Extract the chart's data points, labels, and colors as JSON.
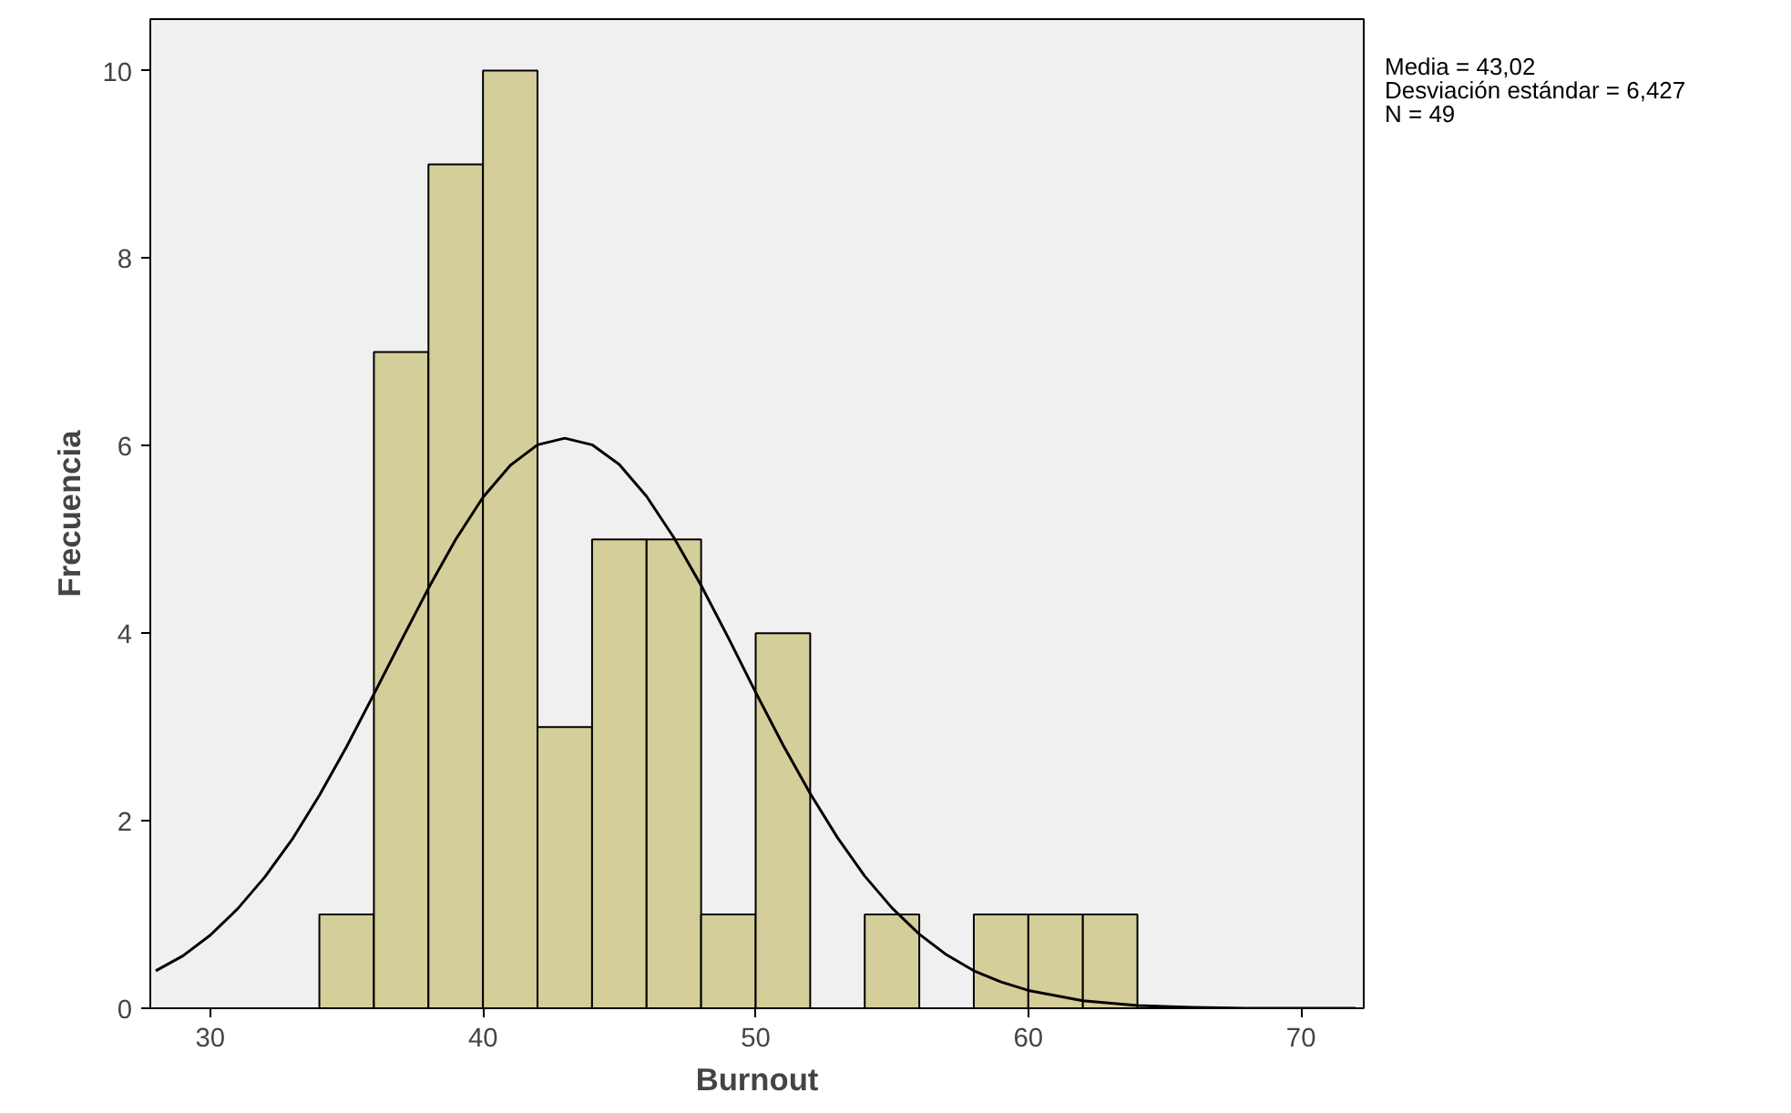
{
  "chart_data": {
    "type": "histogram",
    "xlabel": "Burnout",
    "ylabel": "Frecuencia",
    "bins": [
      34,
      36,
      38,
      40,
      42,
      44,
      46,
      48,
      50,
      52,
      54,
      56,
      58,
      60,
      62,
      64
    ],
    "values": [
      1,
      7,
      9,
      10,
      3,
      5,
      5,
      1,
      4,
      0,
      1,
      0,
      1,
      1,
      1
    ],
    "color": "#d4cf9a",
    "series": [
      {
        "type": "line",
        "color": "#000000",
        "x": [
          28,
          29,
          30,
          31,
          32,
          33,
          34,
          35,
          36,
          37,
          38,
          39,
          40,
          41,
          42,
          43,
          44,
          45,
          46,
          47,
          48,
          49,
          50,
          51,
          52,
          53,
          54,
          55,
          56,
          57,
          58,
          59,
          60,
          62,
          64,
          66,
          68,
          70,
          72
        ],
        "values": [
          0.4,
          0.56,
          0.78,
          1.06,
          1.4,
          1.8,
          2.27,
          2.79,
          3.35,
          3.92,
          4.48,
          5.0,
          5.45,
          5.79,
          6.01,
          6.08,
          6.01,
          5.8,
          5.46,
          5.02,
          4.51,
          3.95,
          3.37,
          2.81,
          2.29,
          1.82,
          1.41,
          1.07,
          0.79,
          0.57,
          0.4,
          0.28,
          0.19,
          0.08,
          0.03,
          0.01,
          0,
          0,
          0
        ]
      }
    ],
    "xlim": [
      27.8,
      72.3
    ],
    "ylim": [
      0,
      10.55
    ],
    "xticks": [
      30,
      40,
      50,
      60,
      70
    ],
    "yticks": [
      0,
      2,
      4,
      6,
      8,
      10
    ],
    "grid": false,
    "annotations": [
      "Media = 43,02",
      "Desviación estándar = 6,427",
      "N = 49"
    ]
  }
}
